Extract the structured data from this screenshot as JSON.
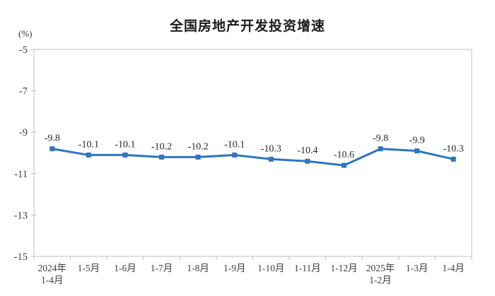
{
  "chart_data": {
    "type": "line",
    "title": "全国房地产开发投资增速",
    "unit_label": "(%)",
    "categories": [
      "2024年\n1-4月",
      "1-5月",
      "1-6月",
      "1-7月",
      "1-8月",
      "1-9月",
      "1-10月",
      "1-11月",
      "1-12月",
      "2025年\n1-2月",
      "1-3月",
      "1-4月"
    ],
    "values": [
      -9.8,
      -10.1,
      -10.1,
      -10.2,
      -10.2,
      -10.1,
      -10.3,
      -10.4,
      -10.6,
      -9.8,
      -9.9,
      -10.3
    ],
    "data_labels": [
      "-9.8",
      "-10.1",
      "-10.1",
      "-10.2",
      "-10.2",
      "-10.1",
      "-10.3",
      "-10.4",
      "-10.6",
      "-9.8",
      "-9.9",
      "-10.3"
    ],
    "y_ticks": [
      -5,
      -7,
      -9,
      -11,
      -13,
      -15
    ],
    "ylim": [
      -15,
      -5
    ],
    "grid": false,
    "legend": "none",
    "marker_shape": "square",
    "colors": {
      "line": "#2E74C0",
      "marker": "#2E74C0",
      "axis_text": "#404040",
      "data_label": "#262626",
      "frame": "#BFBFBF",
      "title": "#1A1A1A",
      "background": "#FFFFFF"
    }
  }
}
